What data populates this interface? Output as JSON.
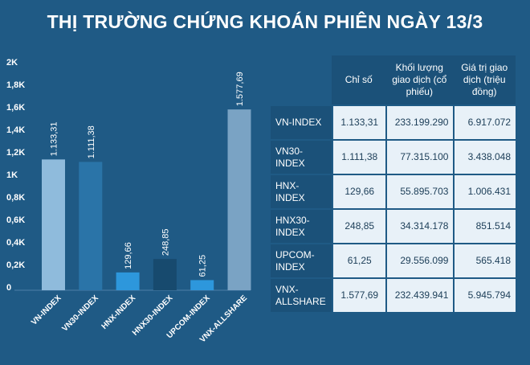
{
  "title": "THỊ TRƯỜNG CHỨNG KHOÁN PHIÊN NGÀY 13/3",
  "chart_data": {
    "type": "bar",
    "categories": [
      "VN-INDEX",
      "VN30-INDEX",
      "HNX-INDEX",
      "HNX30-INDEX",
      "UPCOM-INDEX",
      "VNX-ALLSHARE"
    ],
    "values": [
      1133.31,
      1111.38,
      129.66,
      248.85,
      61.25,
      1577.69
    ],
    "value_labels": [
      "1.133,31",
      "1.111,38",
      "129,66",
      "248,85",
      "61,25",
      "1.577,69"
    ],
    "bar_colors": [
      "#8fbbdc",
      "#2a74a8",
      "#2d97dc",
      "#174a6e",
      "#2d97dc",
      "#7aa3c4"
    ],
    "ylim": [
      0,
      2000
    ],
    "yticks": [
      0,
      200,
      400,
      600,
      800,
      1000,
      1200,
      1400,
      1600,
      1800,
      2000
    ],
    "ytick_labels": [
      "0",
      "0,2K",
      "0,4K",
      "0,6K",
      "0,8K",
      "1K",
      "1,2K",
      "1,4K",
      "1,6K",
      "1,8K",
      "2K"
    ],
    "xlabel": "",
    "ylabel": "",
    "grid": false
  },
  "table": {
    "headers": [
      "Chỉ số",
      "Khối lượng giao dịch (cổ phiếu)",
      "Giá trị giao dịch (triệu đồng)"
    ],
    "rows": [
      {
        "name": "VN-INDEX",
        "index": "1.133,31",
        "volume": "233.199.290",
        "value": "6.917.072"
      },
      {
        "name": "VN30-INDEX",
        "index": "1.111,38",
        "volume": "77.315.100",
        "value": "3.438.048"
      },
      {
        "name": "HNX-INDEX",
        "index": "129,66",
        "volume": "55.895.703",
        "value": "1.006.431"
      },
      {
        "name": "HNX30-INDEX",
        "index": "248,85",
        "volume": "34.314.178",
        "value": "851.514"
      },
      {
        "name": "UPCOM-INDEX",
        "index": "61,25",
        "volume": "29.556.099",
        "value": "565.418"
      },
      {
        "name": "VNX-ALLSHARE",
        "index": "1.577,69",
        "volume": "232.439.941",
        "value": "5.945.794"
      }
    ]
  }
}
